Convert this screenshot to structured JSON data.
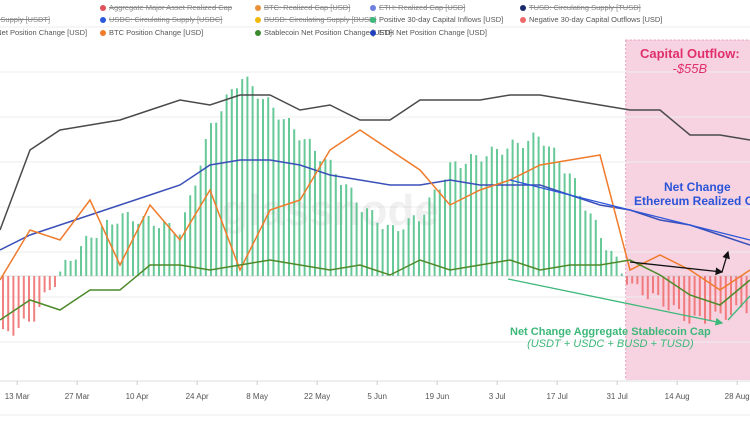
{
  "legend": [
    {
      "label": "D]",
      "color": "#7a8c99",
      "off": true,
      "col": 0,
      "row": 0
    },
    {
      "label": "ng Supply [USDT]",
      "color": "#26a17b",
      "off": true,
      "col": 0,
      "row": 1
    },
    {
      "label": "e Net Position Change [USD]",
      "color": "#444444",
      "off": false,
      "col": 0,
      "row": 2
    },
    {
      "label": "Aggregate Major Asset Realized Cap",
      "color": "#e0505a",
      "off": true,
      "col": 1,
      "row": 0
    },
    {
      "label": "USDC: Circulating Supply [USDC]",
      "color": "#2a5ada",
      "off": true,
      "col": 1,
      "row": 1
    },
    {
      "label": "BTC Position Change [USD]",
      "color": "#f07b2b",
      "off": false,
      "col": 1,
      "row": 2
    },
    {
      "label": "BTC: Realized Cap [USD]",
      "color": "#e8913a",
      "off": true,
      "col": 2,
      "row": 0
    },
    {
      "label": "BUSD: Circulating Supply [BUSD]",
      "color": "#f0b90b",
      "off": true,
      "col": 2,
      "row": 1
    },
    {
      "label": "Stablecoin Net Position Change [USD]",
      "color": "#3d8b2f",
      "off": false,
      "col": 2,
      "row": 2
    },
    {
      "label": "ETH: Realized Cap [USD]",
      "color": "#6f7fe0",
      "off": true,
      "col": 3,
      "row": 0
    },
    {
      "label": "Positive 30-day Capital Inflows [USD]",
      "color": "#3cb878",
      "off": false,
      "col": 3,
      "row": 1
    },
    {
      "label": "ETH Net Position Change [USD]",
      "color": "#1f3fbf",
      "off": false,
      "col": 3,
      "row": 2
    },
    {
      "label": "TUSD: Circulating Supply [TUSD]",
      "color": "#1a2a6c",
      "off": true,
      "col": 4,
      "row": 0
    },
    {
      "label": "Negative 30-day Capital Outflows [USD]",
      "color": "#ee6a6a",
      "off": false,
      "col": 4,
      "row": 1
    }
  ],
  "annotations": {
    "outflow_title": "Capital Outflow:",
    "outflow_value": "-$55B",
    "eth_line1": "Net Change",
    "eth_line2": "Ethereum Realized Cap",
    "stable_line1": "Net Change Aggregate Stablecoin Cap",
    "stable_line2": "(USDT + USDC + BUSD + TUSD)",
    "watermark": "glassnode"
  },
  "colors": {
    "outflow_region": "#f7d3e2",
    "outflow_text": "#e0306a",
    "eth_text": "#2a55d8",
    "stable_text": "#3cb878"
  },
  "chart_data": {
    "type": "line",
    "title": "",
    "xlabel": "",
    "ylabel": "",
    "x_ticks": [
      "13 Mar",
      "27 Mar",
      "10 Apr",
      "24 Apr",
      "8 May",
      "22 May",
      "5 Jun",
      "19 Jun",
      "3 Jul",
      "17 Jul",
      "31 Jul",
      "14 Aug",
      "28 Aug"
    ],
    "x": [
      "9 Mar",
      "16 Mar",
      "23 Mar",
      "30 Mar",
      "6 Apr",
      "13 Apr",
      "20 Apr",
      "27 Apr",
      "4 May",
      "11 May",
      "18 May",
      "25 May",
      "1 Jun",
      "8 Jun",
      "15 Jun",
      "22 Jun",
      "29 Jun",
      "6 Jul",
      "13 Jul",
      "20 Jul",
      "27 Jul",
      "3 Aug",
      "10 Aug",
      "17 Aug",
      "24 Aug",
      "31 Aug"
    ],
    "ylim": [
      -110,
      250
    ],
    "grid": true,
    "highlight_region": {
      "from": "2 Aug",
      "to": "31 Aug"
    },
    "series": [
      {
        "name": "e Net Position Change [USD]",
        "color": "#4a4a4a",
        "values": [
          46,
          126,
          146,
          151,
          156,
          166,
          176,
          171,
          181,
          181,
          166,
          171,
          156,
          156,
          176,
          176,
          176,
          181,
          181,
          176,
          171,
          166,
          166,
          141,
          141,
          136
        ]
      },
      {
        "name": "ETH Net Position Change [USD]",
        "color": "#3a4fb8",
        "values": [
          26,
          41,
          51,
          61,
          71,
          81,
          91,
          111,
          116,
          116,
          111,
          101,
          96,
          91,
          91,
          96,
          91,
          91,
          91,
          81,
          71,
          66,
          56,
          51,
          41,
          31
        ]
      },
      {
        "name": "BTC Position Change [USD]",
        "color": "#f07b2b",
        "values": [
          -4,
          46,
          36,
          76,
          11,
          71,
          36,
          86,
          6,
          66,
          76,
          126,
          146,
          126,
          106,
          71,
          86,
          96,
          111,
          116,
          121,
          6,
          21,
          6,
          -14,
          6
        ]
      },
      {
        "name": "Stablecoin Net Position Change [USD]",
        "color": "#4d8a2a",
        "values": [
          -44,
          -24,
          -34,
          -14,
          -14,
          11,
          11,
          6,
          11,
          16,
          11,
          6,
          11,
          1,
          16,
          6,
          11,
          16,
          6,
          11,
          11,
          16,
          1,
          -19,
          -29,
          -4
        ]
      }
    ],
    "bars": {
      "positive_color": "#4cbf86",
      "negative_color": "#ee6a6a",
      "values": [
        -60,
        -45,
        5,
        40,
        60,
        55,
        45,
        150,
        200,
        170,
        140,
        110,
        70,
        45,
        60,
        110,
        120,
        130,
        140,
        100,
        40,
        -10,
        -25,
        -45,
        -40,
        -30
      ]
    }
  }
}
